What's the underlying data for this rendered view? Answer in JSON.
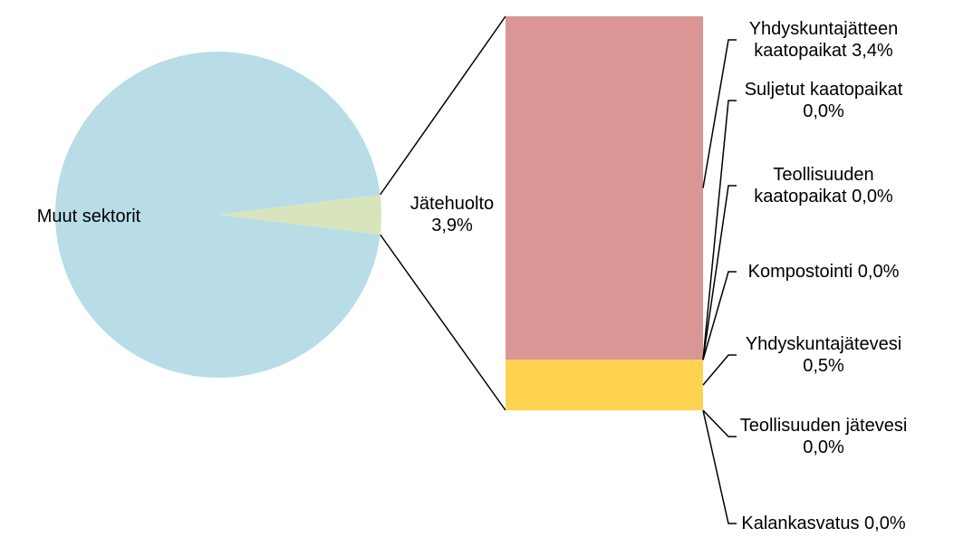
{
  "chart_data": {
    "type": "bar-of-pie",
    "pie": {
      "slices": [
        {
          "label": "Muut sektorit",
          "value": 96.1,
          "color": "#b8dde7"
        },
        {
          "label": "Jätehuolto",
          "value_label": "3,9%",
          "value": 3.9,
          "color": "#d8e4bc"
        }
      ]
    },
    "bar": {
      "total": 3.9,
      "segments": [
        {
          "label_lines": [
            "Yhdyskuntajätteen",
            "kaatopaikat 3,4%"
          ],
          "value": 3.4,
          "color": "#d99694"
        },
        {
          "label_lines": [
            "Suljetut kaatopaikat",
            "0,0%"
          ],
          "value": 0.0,
          "color": "#d99694"
        },
        {
          "label_lines": [
            "Teollisuuden",
            "kaatopaikat 0,0%"
          ],
          "value": 0.0,
          "color": "#d99694"
        },
        {
          "label_lines": [
            "Kompostointi 0,0%"
          ],
          "value": 0.0,
          "color": "#d99694"
        },
        {
          "label_lines": [
            "Yhdyskuntajätevesi",
            "0,5%"
          ],
          "value": 0.5,
          "color": "#ffd34f"
        },
        {
          "label_lines": [
            "Teollisuuden jätevesi",
            "0,0%"
          ],
          "value": 0.0,
          "color": "#ffd34f"
        },
        {
          "label_lines": [
            "Kalankasvatus 0,0%"
          ],
          "value": 0.0,
          "color": "#ffd34f"
        }
      ]
    }
  }
}
